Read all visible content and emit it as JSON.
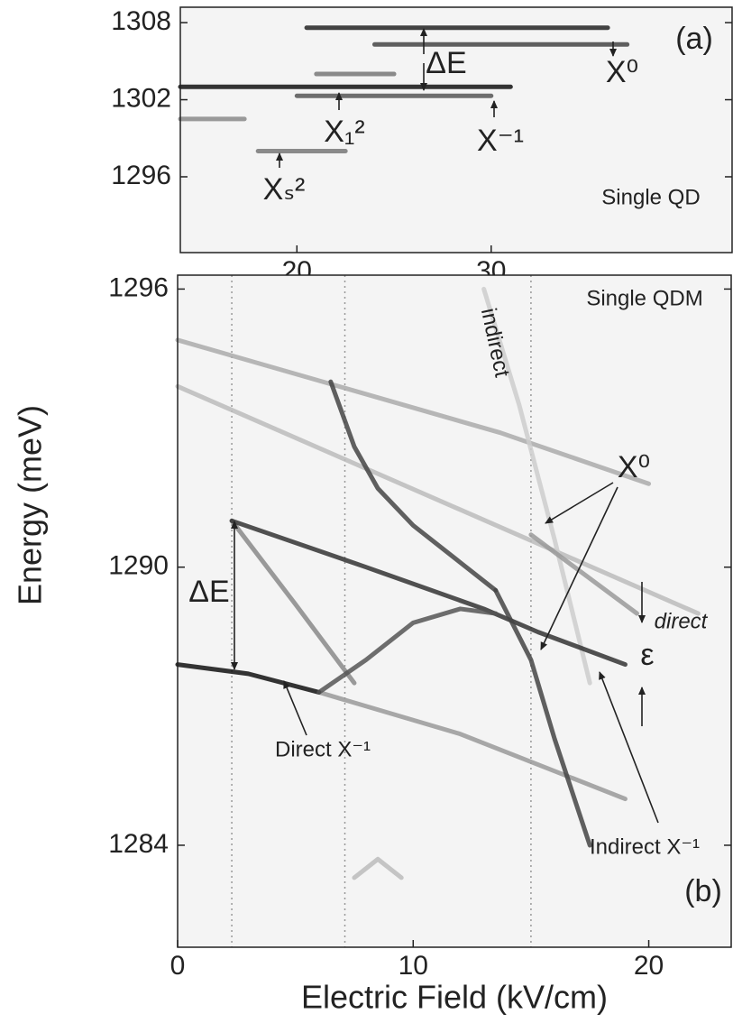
{
  "chart_data": [
    {
      "type": "line",
      "xlim": [
        14,
        42.4
      ],
      "xticks": [
        20,
        30
      ],
      "ylim": [
        1290.1,
        1309.2
      ],
      "yticks": [
        1296,
        1302,
        1308
      ],
      "annotations": [
        "(a)",
        "ΔE",
        "X⁰",
        "X⁻¹",
        "X₁²",
        "Xₛ²",
        "Single QD"
      ],
      "series": [
        {
          "color": "#222",
          "x": [
            20.5,
            36
          ],
          "values": [
            1307.6,
            1307.6
          ]
        },
        {
          "color": "#444",
          "x": [
            24,
            37
          ],
          "values": [
            1306.3,
            1306.3
          ]
        },
        {
          "color": "#777",
          "x": [
            21,
            25
          ],
          "values": [
            1304.0,
            1304.0
          ]
        },
        {
          "color": "#111",
          "x": [
            14,
            31
          ],
          "values": [
            1303.0,
            1303.0
          ]
        },
        {
          "color": "#555",
          "x": [
            20,
            30
          ],
          "values": [
            1302.3,
            1302.3
          ]
        },
        {
          "color": "#888",
          "x": [
            14,
            17.3
          ],
          "values": [
            1300.5,
            1300.5
          ]
        },
        {
          "color": "#777",
          "x": [
            18,
            22.5
          ],
          "values": [
            1298.0,
            1298.0
          ]
        }
      ]
    },
    {
      "type": "line",
      "xlabel": "Electric Field (kV/cm)",
      "ylabel": "Energy (meV)",
      "xlim": [
        0,
        23.5
      ],
      "xticks": [
        0,
        10,
        20
      ],
      "ylim": [
        1281.8,
        1296.3
      ],
      "yticks": [
        1284,
        1290,
        1296
      ],
      "vlines": [
        2.3,
        7.1,
        15
      ],
      "annotations": [
        "Single QDM",
        "indirect",
        "X⁰",
        "direct",
        "ε",
        "ΔE",
        "Direct X⁻¹",
        "Indirect X⁻¹",
        "(b)"
      ],
      "series": [
        {
          "color": "#aaa",
          "x": [
            0,
            13.7,
            20
          ],
          "values": [
            1294.9,
            1292.9,
            1291.8
          ]
        },
        {
          "color": "#bbb",
          "x": [
            0,
            22.1
          ],
          "values": [
            1293.9,
            1289.0
          ]
        },
        {
          "color": "#ccc",
          "x": [
            13,
            14.5,
            16,
            17.5
          ],
          "values": [
            1296,
            1293.5,
            1290.6,
            1287.5
          ]
        },
        {
          "color": "#999",
          "x": [
            15,
            19.5
          ],
          "values": [
            1290.7,
            1289.0
          ]
        },
        {
          "color": "#999",
          "x": [
            6,
            12,
            19
          ],
          "values": [
            1287.3,
            1286.4,
            1285.0
          ]
        },
        {
          "color": "#888",
          "x": [
            2.3,
            5,
            7.5
          ],
          "values": [
            1291,
            1289.2,
            1287.5
          ]
        },
        {
          "color": "#333",
          "x": [
            2.3,
            8,
            13,
            15.3,
            19
          ],
          "values": [
            1291,
            1290,
            1289.1,
            1288.6,
            1287.9
          ]
        },
        {
          "color": "#111",
          "x": [
            0,
            3,
            6
          ],
          "values": [
            1287.9,
            1287.7,
            1287.3
          ]
        },
        {
          "color": "#555",
          "x": [
            6,
            8,
            10,
            12,
            13.5
          ],
          "values": [
            1287.3,
            1288.0,
            1288.8,
            1289.1,
            1289.0
          ]
        },
        {
          "color": "#444",
          "x": [
            6.5,
            7.5,
            8.5,
            10,
            12,
            13.5
          ],
          "values": [
            1294,
            1292.6,
            1291.7,
            1290.9,
            1290.1,
            1289.5
          ]
        },
        {
          "color": "#444",
          "x": [
            13.5,
            15,
            16,
            17.5
          ],
          "values": [
            1289.5,
            1288.0,
            1286.3,
            1284
          ]
        },
        {
          "color": "#bbb",
          "x": [
            7.5,
            8.5,
            9.5
          ],
          "values": [
            1283.3,
            1283.7,
            1283.3
          ]
        }
      ]
    }
  ]
}
